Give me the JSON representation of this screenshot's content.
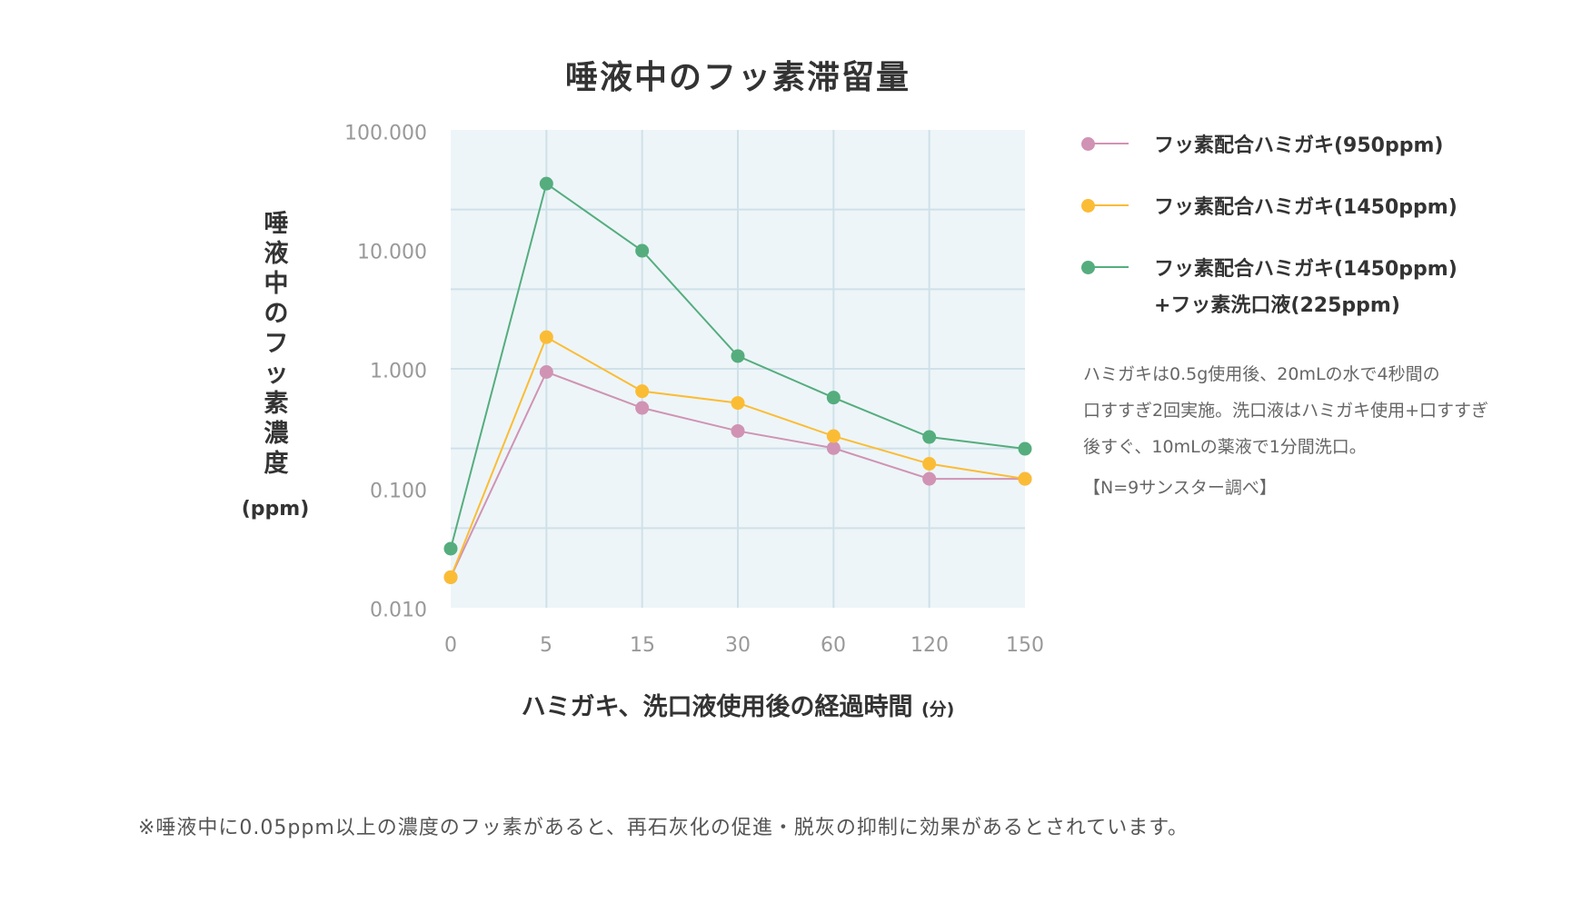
{
  "chart_data": {
    "type": "line",
    "title": "唾液中のフッ素滞留量",
    "xlabel": "ハミガキ、洗口液使用後の経過時間",
    "xlabel_unit": "(分)",
    "ylabel": "唾液中のフッ素濃度",
    "ylabel_unit": "(ppm)",
    "y_scale": "log",
    "ylim": [
      0.01,
      100
    ],
    "y_ticks": [
      "100.000",
      "10.000",
      "1.000",
      "0.100",
      "0.010"
    ],
    "categories": [
      "0",
      "5",
      "15",
      "30",
      "60",
      "120",
      "150"
    ],
    "grid": true,
    "legend_position": "right",
    "series": [
      {
        "name": "フッ素配合ハミガキ(950ppm)",
        "color": "#d093b4",
        "values": [
          0.019,
          1.0,
          0.5,
          0.32,
          0.23,
          0.127,
          0.127
        ]
      },
      {
        "name": "フッ素配合ハミガキ(1450ppm)",
        "color": "#fbbc35",
        "values": [
          0.019,
          1.96,
          0.69,
          0.55,
          0.29,
          0.17,
          0.127
        ]
      },
      {
        "name": "フッ素配合ハミガキ(1450ppm)+フッ素洗口液(225ppm)",
        "color": "#55ad7e",
        "values": [
          0.033,
          38.0,
          10.4,
          1.36,
          0.61,
          0.285,
          0.227
        ]
      }
    ]
  },
  "title": "唾液中のフッ素滞留量",
  "y_axis": {
    "label_chars": [
      "唾",
      "液",
      "中",
      "の",
      "フ",
      "ッ",
      "素",
      "濃",
      "度"
    ],
    "unit": "(ppm)",
    "ticks": [
      "100.000",
      "10.000",
      "1.000",
      "0.100",
      "0.010"
    ]
  },
  "x_axis": {
    "label": "ハミガキ、洗口液使用後の経過時間",
    "unit": "(分)",
    "ticks": [
      "0",
      "5",
      "15",
      "30",
      "60",
      "120",
      "150"
    ]
  },
  "legend": {
    "items": [
      {
        "label": "フッ素配合ハミガキ(950ppm)",
        "color": "#d093b4"
      },
      {
        "label": "フッ素配合ハミガキ(1450ppm)",
        "color": "#fbbc35"
      },
      {
        "label": "フッ素配合ハミガキ(1450ppm)",
        "sub": "+フッ素洗口液(225ppm)",
        "color": "#55ad7e"
      }
    ]
  },
  "notes": {
    "lines": [
      "ハミガキは0.5g使用後、20mLの水で4秒間の",
      "口すすぎ2回実施。洗口液はハミガキ使用+口すすぎ",
      "後すぐ、10mLの薬液で1分間洗口。"
    ],
    "source": "【N=9サンスター調べ】"
  },
  "footnote": "※唾液中に0.05ppm以上の濃度のフッ素があると、再石灰化の促進・脱灰の抑制に効果があるとされています。",
  "colors": {
    "plot_bg": "#edf5f8",
    "grid": "#cfe1e8",
    "tick_text": "#999999",
    "text": "#333333"
  }
}
